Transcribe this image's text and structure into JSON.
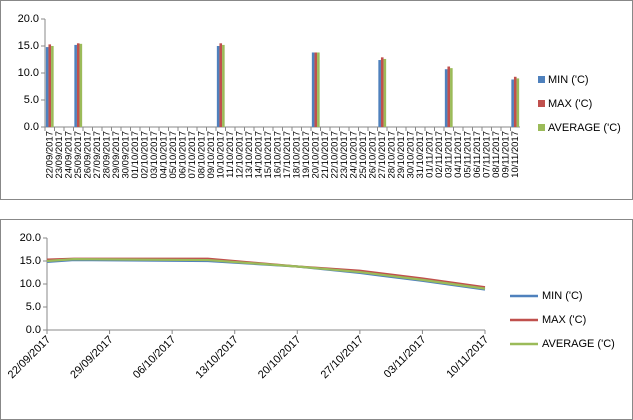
{
  "chart_data": [
    {
      "type": "bar",
      "categories": [
        "22/09/2017",
        "23/09/2017",
        "24/09/2017",
        "25/09/2017",
        "26/09/2017",
        "27/09/2017",
        "28/09/2017",
        "29/09/2017",
        "30/09/2017",
        "01/10/2017",
        "02/10/2017",
        "03/10/2017",
        "04/10/2017",
        "05/10/2017",
        "06/10/2017",
        "07/10/2017",
        "08/10/2017",
        "09/10/2017",
        "10/10/2017",
        "11/10/2017",
        "12/10/2017",
        "13/10/2017",
        "14/10/2017",
        "15/10/2017",
        "16/10/2017",
        "17/10/2017",
        "18/10/2017",
        "19/10/2017",
        "20/10/2017",
        "21/10/2017",
        "22/10/2017",
        "23/10/2017",
        "24/10/2017",
        "25/10/2017",
        "26/10/2017",
        "27/10/2017",
        "28/10/2017",
        "29/10/2017",
        "30/10/2017",
        "31/10/2017",
        "01/11/2017",
        "02/11/2017",
        "03/11/2017",
        "04/11/2017",
        "05/11/2017",
        "06/11/2017",
        "07/11/2017",
        "08/11/2017",
        "09/11/2017",
        "10/11/2017"
      ],
      "series": [
        {
          "name": "MIN ('C)",
          "color": "#4f81bd",
          "values": [
            14.8,
            null,
            null,
            15.2,
            null,
            null,
            null,
            null,
            null,
            null,
            null,
            null,
            null,
            null,
            null,
            null,
            null,
            null,
            15.0,
            null,
            null,
            null,
            null,
            null,
            null,
            null,
            null,
            null,
            13.8,
            null,
            null,
            null,
            null,
            null,
            null,
            12.4,
            null,
            null,
            null,
            null,
            null,
            null,
            10.7,
            null,
            null,
            null,
            null,
            null,
            null,
            8.8
          ]
        },
        {
          "name": "MAX ('C)",
          "color": "#c0504d",
          "values": [
            15.3,
            null,
            null,
            15.5,
            null,
            null,
            null,
            null,
            null,
            null,
            null,
            null,
            null,
            null,
            null,
            null,
            null,
            null,
            15.5,
            null,
            null,
            null,
            null,
            null,
            null,
            null,
            null,
            null,
            13.8,
            null,
            null,
            null,
            null,
            null,
            null,
            12.9,
            null,
            null,
            null,
            null,
            null,
            null,
            11.2,
            null,
            null,
            null,
            null,
            null,
            null,
            9.3
          ]
        },
        {
          "name": "AVERAGE ('C)",
          "color": "#9bbb59",
          "values": [
            15.0,
            null,
            null,
            15.4,
            null,
            null,
            null,
            null,
            null,
            null,
            null,
            null,
            null,
            null,
            null,
            null,
            null,
            null,
            15.2,
            null,
            null,
            null,
            null,
            null,
            null,
            null,
            null,
            null,
            13.8,
            null,
            null,
            null,
            null,
            null,
            null,
            12.6,
            null,
            null,
            null,
            null,
            null,
            null,
            10.9,
            null,
            null,
            null,
            null,
            null,
            null,
            9.0
          ]
        }
      ],
      "ylim": [
        0,
        20
      ],
      "yticks": [
        {
          "value": 0,
          "label": "0.0"
        },
        {
          "value": 5,
          "label": "5.0"
        },
        {
          "value": 10,
          "label": "10.0"
        },
        {
          "value": 15,
          "label": "15.0"
        },
        {
          "value": 20,
          "label": "20.0"
        }
      ],
      "legend": "right"
    },
    {
      "type": "line",
      "x": [
        "22/09/2017",
        "25/09/2017",
        "10/10/2017",
        "20/10/2017",
        "27/10/2017",
        "03/11/2017",
        "10/11/2017"
      ],
      "series": [
        {
          "name": "MIN ('C)",
          "color": "#4f81bd",
          "values": [
            14.8,
            15.2,
            15.0,
            13.8,
            12.4,
            10.7,
            8.8
          ]
        },
        {
          "name": "MAX ('C)",
          "color": "#c0504d",
          "values": [
            15.3,
            15.5,
            15.5,
            13.8,
            12.9,
            11.2,
            9.3
          ]
        },
        {
          "name": "AVERAGE ('C)",
          "color": "#9bbb59",
          "values": [
            15.0,
            15.4,
            15.2,
            13.8,
            12.6,
            10.9,
            9.0
          ]
        }
      ],
      "xlim": [
        "22/09/2017",
        "10/11/2017"
      ],
      "xticks": [
        "22/09/2017",
        "29/09/2017",
        "06/10/2017",
        "13/10/2017",
        "20/10/2017",
        "27/10/2017",
        "03/11/2017",
        "10/11/2017"
      ],
      "ylim": [
        0,
        20
      ],
      "yticks": [
        {
          "value": 0,
          "label": "0.0"
        },
        {
          "value": 5,
          "label": "5.0"
        },
        {
          "value": 10,
          "label": "10.0"
        },
        {
          "value": 15,
          "label": "15.0"
        },
        {
          "value": 20,
          "label": "20.0"
        }
      ],
      "legend": "right"
    }
  ]
}
